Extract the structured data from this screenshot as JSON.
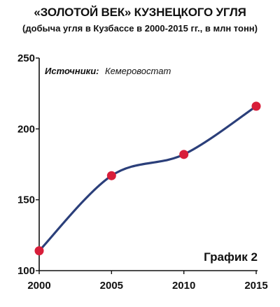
{
  "chart_data": {
    "type": "line",
    "title": "«ЗОЛОТОЙ ВЕК» КУЗНЕЦКОГО УГЛЯ",
    "subtitle": "(добыча угля в Кузбассе в 2000-2015 гг., в млн тонн)",
    "x": [
      2000,
      2005,
      2010,
      2015
    ],
    "x_tick_labels": [
      "2000",
      "2005",
      "2010",
      "2015"
    ],
    "series": [
      {
        "values": [
          114,
          167,
          182,
          216
        ]
      }
    ],
    "y_tick_labels": [
      "100",
      "150",
      "200",
      "250"
    ],
    "xlim": [
      2000,
      2015
    ],
    "ylim": [
      100,
      250
    ],
    "grid": false,
    "source_label": "Источники:",
    "source_value": "Кемеровостат",
    "chart_label": "График 2",
    "colors": {
      "line": "#2b3f7a",
      "marker": "#d81e3a",
      "axis": "#111111"
    }
  }
}
